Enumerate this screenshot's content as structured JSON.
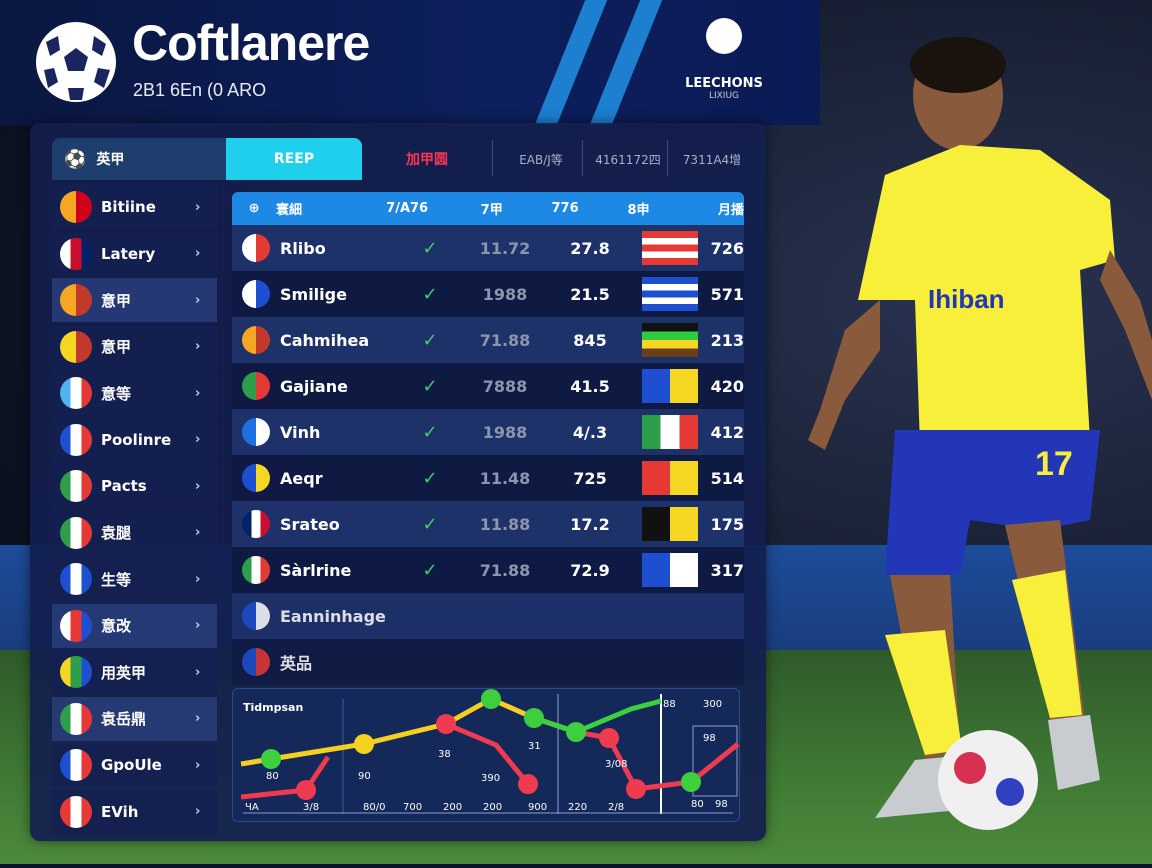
{
  "header": {
    "title": "Coftlanere",
    "subtitle": "2B1 6En (0 ARO",
    "league_logo_text": "LEECHONS",
    "league_logo_sub": "LIXIUG"
  },
  "tabs": [
    {
      "label": "英甲",
      "icon": "soccer-ball-icon"
    },
    {
      "label": "REEP",
      "active": true
    },
    {
      "label": "加甲圆",
      "color": "#ff3355"
    },
    {
      "label": "EAB/J等"
    },
    {
      "label": "4161172四"
    },
    {
      "label": "7311A4增"
    }
  ],
  "sidebar": {
    "items": [
      {
        "label": "Bitiine",
        "colors": [
          "#f5a623",
          "#d0021b"
        ]
      },
      {
        "label": "Latery",
        "colors": [
          "#ffffff",
          "#c8102e",
          "#012169"
        ]
      },
      {
        "label": "意甲",
        "colors": [
          "#f5a623",
          "#c0392b"
        ],
        "highlight": true
      },
      {
        "label": "意甲",
        "colors": [
          "#f5d623",
          "#c0392b"
        ]
      },
      {
        "label": "意等",
        "colors": [
          "#4fb3f0",
          "#ffffff",
          "#e53935"
        ]
      },
      {
        "label": "Poolinre",
        "colors": [
          "#1e4fd0",
          "#ffffff",
          "#e53935"
        ]
      },
      {
        "label": "Pacts",
        "colors": [
          "#2e9e4a",
          "#ffffff",
          "#e53935"
        ]
      },
      {
        "label": "袁腿",
        "colors": [
          "#2e9e4a",
          "#ffffff",
          "#e53935"
        ]
      },
      {
        "label": "生等",
        "colors": [
          "#1e4fd0",
          "#ffffff",
          "#1e4fd0"
        ]
      },
      {
        "label": "意改",
        "colors": [
          "#ffffff",
          "#e53935",
          "#1e4fd0"
        ],
        "highlight": true
      },
      {
        "label": "用英甲",
        "colors": [
          "#f5d623",
          "#2e9e4a",
          "#1e4fd0"
        ]
      },
      {
        "label": "袁岳鼎",
        "colors": [
          "#2e9e4a",
          "#ffffff",
          "#e53935"
        ],
        "highlight": true
      },
      {
        "label": "GpoUle",
        "colors": [
          "#1e4fd0",
          "#ffffff",
          "#e53935"
        ]
      },
      {
        "label": "EVih",
        "colors": [
          "#e53935",
          "#ffffff",
          "#e53935"
        ]
      }
    ]
  },
  "table": {
    "headers": [
      "寰細",
      "7/A76",
      "7甲",
      "776",
      "8申",
      "月播"
    ],
    "rows": [
      {
        "name": "Rlibo",
        "check": "✓",
        "v1": "11.72",
        "v2": "27.8",
        "v3": "726",
        "team_colors": [
          "#ffffff",
          "#e53935"
        ],
        "flag": [
          "#e53935",
          "#ffffff",
          "#e53935",
          "#ffffff",
          "#e53935"
        ]
      },
      {
        "name": "Smilige",
        "check": "✓",
        "v1": "1988",
        "v2": "21.5",
        "v3": "571",
        "team_colors": [
          "#ffffff",
          "#1e4fd0"
        ],
        "flag": [
          "#1e4fd0",
          "#ffffff",
          "#1e4fd0",
          "#ffffff",
          "#1e4fd0"
        ]
      },
      {
        "name": "Cahmihea",
        "check": "✓",
        "v1": "71.88",
        "v2": "845",
        "v3": "213",
        "team_colors": [
          "#f5a623",
          "#c0392b"
        ],
        "flag": [
          "#111111",
          "#2ecc40",
          "#f5d623",
          "#6b3e1a"
        ]
      },
      {
        "name": "Gajiane",
        "check": "✓",
        "v1": "7888",
        "v2": "41.5",
        "v3": "420",
        "team_colors": [
          "#2e9e4a",
          "#e53935"
        ],
        "flag": [
          "#1e4fd0",
          "#f5d623"
        ]
      },
      {
        "name": "Vinh",
        "check": "✓",
        "v1": "1988",
        "v2": "4/.3",
        "v3": "412",
        "team_colors": [
          "#1e6fe0",
          "#ffffff"
        ],
        "flag": [
          "#2e9e4a",
          "#ffffff",
          "#e53935"
        ]
      },
      {
        "name": "Aeqr",
        "check": "✓",
        "v1": "11.48",
        "v2": "725",
        "v3": "514",
        "team_colors": [
          "#1e4fd0",
          "#f5d623"
        ],
        "flag": [
          "#e53935",
          "#f5d623"
        ]
      },
      {
        "name": "Srateo",
        "check": "✓",
        "v1": "11.88",
        "v2": "17.2",
        "v3": "175",
        "team_colors": [
          "#012169",
          "#ffffff",
          "#c8102e"
        ],
        "flag": [
          "#111111",
          "#f5d623"
        ]
      },
      {
        "name": "Sàrlrine",
        "check": "✓",
        "v1": "71.88",
        "v2": "72.9",
        "v3": "317",
        "team_colors": [
          "#2e9e4a",
          "#ffffff",
          "#e53935"
        ],
        "flag": [
          "#1e4fd0",
          "#ffffff"
        ]
      }
    ],
    "extra_rows": [
      {
        "name": "Eanninhage",
        "team_colors": [
          "#1e4fd0",
          "#ffffff"
        ]
      },
      {
        "name": "英品",
        "team_colors": [
          "#1e4fd0",
          "#e53935"
        ]
      }
    ]
  },
  "chart": {
    "title": "Tidmpsan",
    "x_ticks": [
      "ЧA",
      "3/8",
      "80/0",
      "700",
      "200",
      "200",
      "900",
      "220",
      "2/8"
    ],
    "point_labels": [
      "80",
      "90",
      "38",
      "31",
      "390",
      "3/08",
      "80",
      "300",
      "98",
      "98",
      "88"
    ],
    "series_colors": {
      "yellow": "#f5d020",
      "green": "#3ecf3e",
      "red": "#ee3b4f"
    }
  },
  "player": {
    "shirt_text": "Ihiban",
    "number": "17",
    "shirt_color": "#f7ef3a",
    "shorts_color": "#2436b8"
  }
}
